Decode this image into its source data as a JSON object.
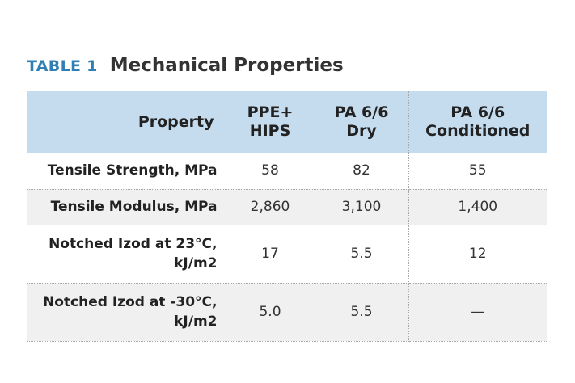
{
  "caption": {
    "tag": "TABLE 1",
    "title": "Mechanical Properties"
  },
  "table": {
    "headers": {
      "property": "Property",
      "col1": "PPE+ HIPS",
      "col2": "PA 6/6 Dry",
      "col3": "PA 6/6 Conditioned"
    },
    "rows": [
      {
        "property": "Tensile Strength, MPa",
        "v1": "58",
        "v2": "82",
        "v3": "55"
      },
      {
        "property": "Tensile Modulus, MPa",
        "v1": "2,860",
        "v2": "3,100",
        "v3": "1,400"
      },
      {
        "property": "Notched Izod at 23°C, kJ/m2",
        "v1": "17",
        "v2": "5.5",
        "v3": "12"
      },
      {
        "property": "Notched Izod at -30°C, kJ/m2",
        "v1": "5.0",
        "v2": "5.5",
        "v3": "—"
      }
    ]
  },
  "colors": {
    "tag": "#2f7fb5",
    "header_background": "#c5dcef",
    "alt_row_background": "#f0f0f0"
  }
}
